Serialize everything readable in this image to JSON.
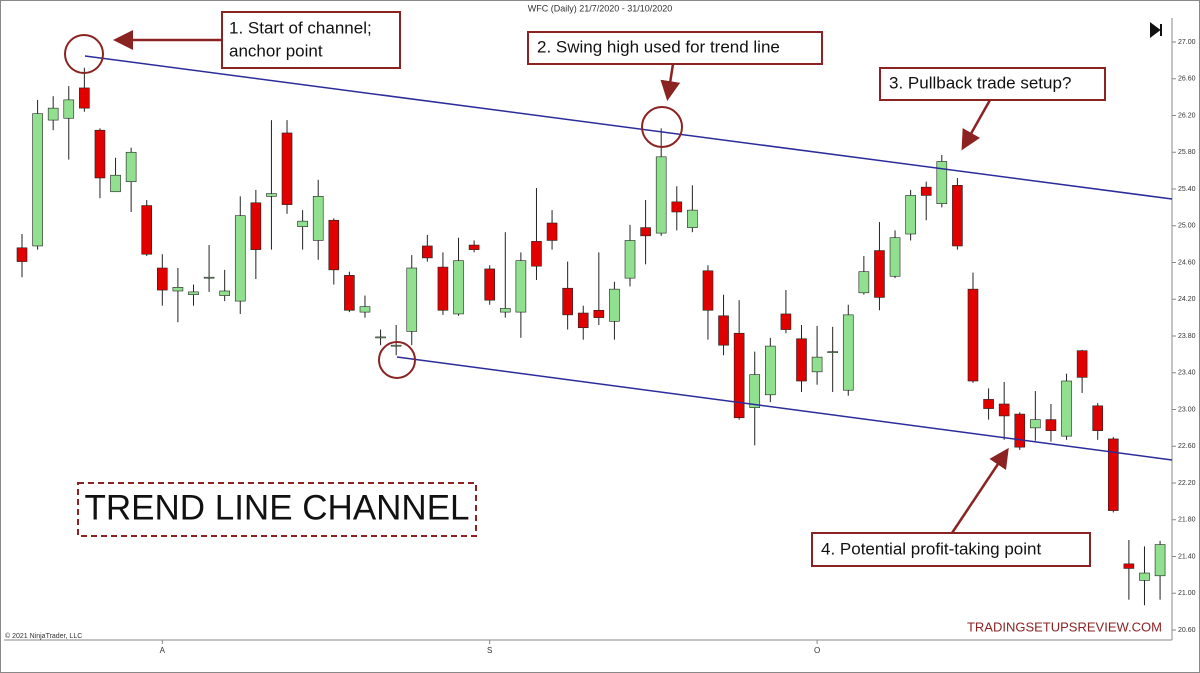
{
  "chart_data": {
    "type": "candlestick",
    "title": "WFC (Daily)  21/7/2020 - 31/10/2020",
    "copyright": "© 2021 NinjaTrader, LLC",
    "watermark": "TRADINGSETUPSREVIEW.COM",
    "label": "TREND LINE CHANNEL",
    "annotations": [
      [
        "1. Start of channel;",
        "anchor point"
      ],
      [
        "2. Swing high used for trend line"
      ],
      [
        "3. Pullback trade setup?"
      ],
      [
        "4. Potential profit-taking point"
      ]
    ],
    "up_color": "#90e090",
    "down_color": "#e00000",
    "categories": [
      null,
      null,
      null,
      null,
      null,
      null,
      null,
      null,
      null,
      "A",
      null,
      null,
      null,
      null,
      null,
      null,
      null,
      null,
      null,
      null,
      null,
      null,
      null,
      null,
      null,
      null,
      null,
      null,
      null,
      null,
      "S",
      null,
      null,
      null,
      null,
      null,
      null,
      null,
      null,
      null,
      null,
      null,
      null,
      null,
      null,
      null,
      null,
      null,
      null,
      null,
      null,
      "O",
      null,
      null,
      null,
      null,
      null,
      null,
      null,
      null,
      null,
      null,
      null,
      null,
      null,
      null,
      null,
      null,
      null,
      null,
      null,
      null,
      null,
      null
    ],
    "open": [
      24.76,
      24.78,
      26.15,
      26.17,
      26.5,
      26.04,
      25.37,
      25.48,
      25.22,
      24.54,
      24.29,
      24.25,
      24.43,
      24.24,
      24.18,
      25.25,
      25.32,
      26.01,
      24.99,
      24.84,
      25.06,
      24.46,
      24.06,
      23.79,
      23.7,
      23.85,
      24.78,
      24.55,
      24.04,
      24.79,
      24.53,
      24.06,
      24.06,
      24.83,
      25.03,
      24.32,
      24.05,
      24.08,
      23.96,
      24.43,
      24.98,
      24.92,
      25.26,
      24.98,
      24.51,
      24.02,
      23.83,
      23.02,
      23.16,
      24.04,
      23.77,
      23.41,
      23.63,
      23.21,
      24.27,
      24.73,
      24.45,
      24.91,
      25.42,
      25.24,
      25.44,
      24.31,
      23.11,
      23.06,
      22.95,
      22.8,
      22.89,
      22.71,
      23.64,
      23.04,
      22.68,
      21.32,
      21.14,
      21.19
    ],
    "high": [
      24.91,
      26.37,
      26.41,
      26.52,
      26.72,
      26.06,
      25.74,
      25.85,
      25.28,
      24.69,
      24.54,
      24.36,
      24.79,
      24.52,
      25.32,
      25.39,
      26.15,
      26.15,
      25.17,
      25.5,
      25.08,
      24.5,
      24.24,
      23.87,
      23.92,
      24.68,
      24.9,
      24.71,
      24.87,
      24.84,
      24.57,
      24.93,
      24.71,
      25.41,
      25.17,
      24.61,
      24.13,
      24.71,
      24.39,
      25.01,
      25.28,
      26.06,
      25.43,
      25.44,
      24.57,
      24.25,
      24.19,
      23.63,
      23.78,
      24.3,
      23.92,
      23.91,
      23.9,
      24.14,
      24.67,
      25.04,
      24.95,
      25.39,
      25.48,
      25.77,
      25.52,
      24.49,
      23.23,
      23.3,
      22.97,
      23.2,
      23.06,
      23.39,
      23.65,
      23.07,
      22.7,
      21.58,
      21.51,
      21.57
    ],
    "low": [
      24.44,
      24.74,
      26.04,
      25.72,
      26.24,
      25.3,
      25.37,
      25.15,
      24.67,
      24.13,
      23.95,
      24.13,
      24.28,
      24.18,
      24.04,
      24.42,
      24.74,
      25.13,
      24.74,
      24.63,
      24.36,
      24.06,
      24.0,
      23.7,
      23.59,
      23.7,
      24.61,
      24.03,
      24.02,
      24.71,
      24.14,
      24.0,
      23.78,
      24.41,
      24.74,
      23.87,
      23.76,
      23.92,
      23.76,
      24.34,
      24.58,
      24.89,
      24.95,
      24.93,
      23.76,
      23.59,
      22.89,
      22.61,
      23.08,
      23.83,
      23.19,
      23.27,
      23.19,
      23.15,
      24.25,
      24.08,
      24.43,
      24.84,
      25.06,
      25.2,
      24.74,
      23.29,
      22.89,
      22.67,
      22.56,
      22.66,
      22.65,
      22.67,
      23.18,
      22.67,
      21.88,
      20.93,
      20.87,
      20.93
    ],
    "close": [
      24.61,
      26.22,
      26.28,
      26.37,
      26.28,
      25.52,
      25.55,
      25.8,
      24.69,
      24.3,
      24.33,
      24.28,
      24.44,
      24.29,
      25.11,
      24.74,
      25.35,
      25.23,
      25.05,
      25.32,
      24.52,
      24.08,
      24.12,
      23.79,
      23.7,
      24.54,
      24.65,
      24.08,
      24.62,
      24.74,
      24.19,
      24.1,
      24.62,
      24.56,
      24.84,
      24.03,
      23.89,
      24.0,
      24.31,
      24.84,
      24.89,
      25.75,
      25.15,
      25.17,
      24.08,
      23.7,
      22.91,
      23.38,
      23.69,
      23.87,
      23.31,
      23.57,
      23.63,
      24.03,
      24.5,
      24.22,
      24.87,
      25.33,
      25.33,
      25.7,
      24.78,
      23.31,
      23.01,
      22.93,
      22.59,
      22.89,
      22.77,
      23.31,
      23.35,
      22.77,
      21.9,
      21.27,
      21.22,
      21.53
    ],
    "ylim": [
      20.6,
      27.0
    ],
    "yticks": [
      {
        "value": 20.6,
        "label": "20.60"
      },
      {
        "value": 21.0,
        "label": "21.00"
      },
      {
        "value": 21.4,
        "label": "21.40"
      },
      {
        "value": 21.8,
        "label": "21.80"
      },
      {
        "value": 22.2,
        "label": "22.20"
      },
      {
        "value": 22.6,
        "label": "22.60"
      },
      {
        "value": 23.0,
        "label": "23.00"
      },
      {
        "value": 23.4,
        "label": "23.40"
      },
      {
        "value": 23.8,
        "label": "23.80"
      },
      {
        "value": 24.2,
        "label": "24.20"
      },
      {
        "value": 24.6,
        "label": "24.60"
      },
      {
        "value": 25.0,
        "label": "25.00"
      },
      {
        "value": 25.4,
        "label": "25.40"
      },
      {
        "value": 25.8,
        "label": "25.80"
      },
      {
        "value": 26.2,
        "label": "26.20"
      },
      {
        "value": 26.6,
        "label": "26.60"
      },
      {
        "value": 27.0,
        "label": "27.00"
      }
    ],
    "grid": false
  }
}
